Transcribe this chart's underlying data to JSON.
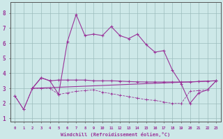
{
  "xlabel": "Windchill (Refroidissement éolien,°C)",
  "background_color": "#cde8e8",
  "grid_color": "#aacccc",
  "line_color": "#993399",
  "xlim": [
    -0.5,
    23.5
  ],
  "ylim": [
    0.8,
    8.7
  ],
  "xticks": [
    0,
    1,
    2,
    3,
    4,
    5,
    6,
    7,
    8,
    9,
    10,
    11,
    12,
    13,
    14,
    15,
    16,
    17,
    18,
    19,
    20,
    21,
    22,
    23
  ],
  "yticks": [
    1,
    2,
    3,
    4,
    5,
    6,
    7,
    8
  ],
  "series1_x": [
    0,
    1,
    2,
    3,
    4,
    5,
    6,
    7,
    8,
    9,
    10,
    11,
    12,
    13,
    14,
    15,
    16,
    17,
    18,
    19,
    20,
    21,
    22,
    23
  ],
  "series1_y": [
    2.5,
    1.6,
    3.0,
    3.7,
    3.5,
    2.6,
    6.1,
    7.9,
    6.5,
    6.6,
    6.5,
    7.1,
    6.5,
    6.3,
    6.6,
    5.9,
    5.4,
    5.5,
    4.2,
    3.3,
    2.0,
    2.7,
    2.9,
    3.5
  ],
  "series2_x": [
    2,
    3,
    4,
    5,
    6,
    7,
    8,
    9,
    10,
    11,
    12,
    13,
    14,
    15,
    16,
    17,
    18,
    19,
    20,
    21,
    22,
    23
  ],
  "series2_y": [
    3.0,
    3.7,
    3.5,
    3.55,
    3.55,
    3.55,
    3.55,
    3.5,
    3.5,
    3.5,
    3.48,
    3.45,
    3.43,
    3.42,
    3.42,
    3.42,
    3.42,
    3.42,
    3.42,
    3.45,
    3.48,
    3.5
  ],
  "series3_x": [
    0,
    1,
    2,
    3,
    4,
    5,
    6,
    7,
    8,
    9,
    10,
    11,
    12,
    13,
    14,
    15,
    16,
    17,
    18,
    19,
    20,
    21,
    22,
    23
  ],
  "series3_y": [
    2.5,
    1.6,
    3.0,
    3.0,
    3.0,
    2.6,
    2.7,
    2.8,
    2.85,
    2.9,
    2.75,
    2.65,
    2.55,
    2.45,
    2.35,
    2.25,
    2.2,
    2.1,
    2.0,
    2.0,
    2.8,
    2.85,
    2.9,
    3.5
  ],
  "series4_x": [
    2,
    23
  ],
  "series4_y": [
    3.0,
    3.5
  ]
}
